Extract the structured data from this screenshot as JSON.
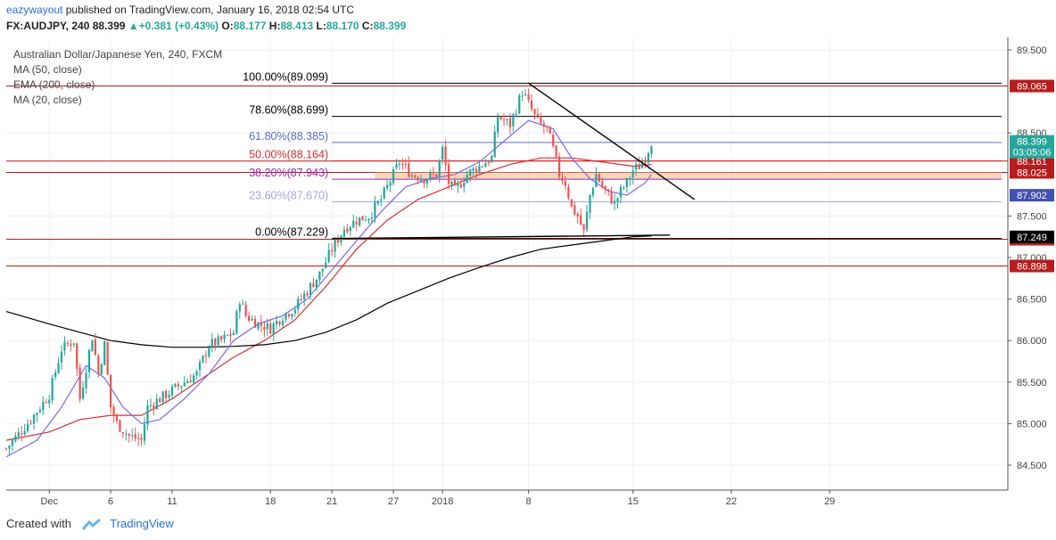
{
  "header": {
    "author": "eazywayout",
    "published_text": "published on TradingView.com, January 16, 2018 02:54 UTC",
    "symbol": "FX:AUDJPY, 240",
    "last": "88.399",
    "change": "+0.381 (+0.43%)",
    "o_label": "O:",
    "o_val": "88.177",
    "h_label": "H:",
    "h_val": "88.413",
    "l_label": "L:",
    "l_val": "88.170",
    "c_label": "C:",
    "c_val": "88.399"
  },
  "legend": {
    "title": "Australian Dollar/Japanese Yen, 240, FXCM",
    "ma50": "MA (50, close)",
    "ema200": "EMA (200, close)",
    "ma20": "MA (20, close)"
  },
  "footer": {
    "created_with": "Created with",
    "brand": "TradingView"
  },
  "colors": {
    "up": "#26a69a",
    "down": "#ef5350",
    "ma50": "#d32f2f",
    "ema200": "#000000",
    "ma20": "#7b68ee",
    "hline_red": "#b71c1c",
    "fib_blue": "#5c6bc0",
    "fib_purple": "#9c27b0",
    "fib_red": "#d32f2f",
    "fib_gray": "#9fa8da",
    "zone": "#f5c9a6"
  },
  "chart_data": {
    "type": "candlestick",
    "instrument": "Australian Dollar/Japanese Yen, 240, FXCM",
    "ylim": [
      84.2,
      89.65
    ],
    "x_range": [
      -7,
      156
    ],
    "y_ticks": [
      "89.500",
      "88.500",
      "87.500",
      "87.000",
      "86.500",
      "86.000",
      "85.500",
      "85.000",
      "84.500"
    ],
    "x_ticks": [
      {
        "label": "Dec",
        "x": 0
      },
      {
        "label": "6",
        "x": 10
      },
      {
        "label": "11",
        "x": 20
      },
      {
        "label": "18",
        "x": 36
      },
      {
        "label": "21",
        "x": 46
      },
      {
        "label": "27",
        "x": 56
      },
      {
        "label": "2018",
        "x": 64
      },
      {
        "label": "8",
        "x": 78
      },
      {
        "label": "15",
        "x": 95
      },
      {
        "label": "22",
        "x": 111
      },
      {
        "label": "29",
        "x": 127
      }
    ],
    "close_path": [
      [
        -7,
        84.7
      ],
      [
        -3,
        85.05
      ],
      [
        0,
        85.35
      ],
      [
        2,
        85.9
      ],
      [
        4,
        86.0
      ],
      [
        5,
        85.3
      ],
      [
        7,
        86.05
      ],
      [
        8,
        85.6
      ],
      [
        9,
        85.95
      ],
      [
        10,
        85.2
      ],
      [
        11,
        85.0
      ],
      [
        13,
        84.85
      ],
      [
        15,
        84.8
      ],
      [
        16,
        85.2
      ],
      [
        18,
        85.3
      ],
      [
        20,
        85.4
      ],
      [
        22,
        85.5
      ],
      [
        24,
        85.6
      ],
      [
        26,
        85.95
      ],
      [
        28,
        86.0
      ],
      [
        30,
        86.1
      ],
      [
        31,
        86.5
      ],
      [
        32,
        86.3
      ],
      [
        34,
        86.2
      ],
      [
        36,
        86.15
      ],
      [
        38,
        86.3
      ],
      [
        40,
        86.4
      ],
      [
        42,
        86.6
      ],
      [
        44,
        86.8
      ],
      [
        46,
        87.1
      ],
      [
        48,
        87.35
      ],
      [
        50,
        87.45
      ],
      [
        52,
        87.5
      ],
      [
        54,
        87.7
      ],
      [
        56,
        88.0
      ],
      [
        57,
        88.15
      ],
      [
        59,
        88.0
      ],
      [
        61,
        87.95
      ],
      [
        63,
        88.0
      ],
      [
        64,
        88.3
      ],
      [
        65,
        87.9
      ],
      [
        66,
        87.8
      ],
      [
        68,
        88.0
      ],
      [
        70,
        88.1
      ],
      [
        72,
        88.2
      ],
      [
        73,
        88.7
      ],
      [
        75,
        88.6
      ],
      [
        76,
        88.8
      ],
      [
        77,
        89.0
      ],
      [
        78,
        88.85
      ],
      [
        79,
        88.7
      ],
      [
        80,
        88.6
      ],
      [
        81,
        88.55
      ],
      [
        82,
        88.3
      ],
      [
        83,
        88.0
      ],
      [
        84,
        87.9
      ],
      [
        85,
        87.6
      ],
      [
        86,
        87.5
      ],
      [
        87,
        87.3
      ],
      [
        88,
        87.75
      ],
      [
        89,
        88.0
      ],
      [
        90,
        87.85
      ],
      [
        91,
        87.75
      ],
      [
        92,
        87.65
      ],
      [
        93,
        87.8
      ],
      [
        94,
        87.9
      ],
      [
        95,
        88.05
      ],
      [
        96,
        88.1
      ],
      [
        97,
        88.2
      ],
      [
        98,
        88.399
      ]
    ],
    "series": [
      {
        "name": "MA (50, close)",
        "color": "#d32f2f",
        "points": [
          [
            -7,
            84.8
          ],
          [
            0,
            84.9
          ],
          [
            5,
            85.05
          ],
          [
            10,
            85.1
          ],
          [
            15,
            85.1
          ],
          [
            20,
            85.3
          ],
          [
            25,
            85.55
          ],
          [
            30,
            85.8
          ],
          [
            35,
            86.0
          ],
          [
            40,
            86.25
          ],
          [
            45,
            86.65
          ],
          [
            50,
            87.1
          ],
          [
            55,
            87.45
          ],
          [
            60,
            87.7
          ],
          [
            65,
            87.85
          ],
          [
            70,
            88.0
          ],
          [
            75,
            88.12
          ],
          [
            80,
            88.2
          ],
          [
            85,
            88.2
          ],
          [
            90,
            88.15
          ],
          [
            95,
            88.1
          ],
          [
            98,
            88.12
          ]
        ]
      },
      {
        "name": "EMA (200, close)",
        "color": "#000000",
        "points": [
          [
            -7,
            86.35
          ],
          [
            0,
            86.2
          ],
          [
            5,
            86.1
          ],
          [
            10,
            86.0
          ],
          [
            15,
            85.95
          ],
          [
            20,
            85.92
          ],
          [
            25,
            85.92
          ],
          [
            30,
            85.93
          ],
          [
            35,
            85.95
          ],
          [
            40,
            86.0
          ],
          [
            45,
            86.1
          ],
          [
            50,
            86.25
          ],
          [
            55,
            86.45
          ],
          [
            60,
            86.6
          ],
          [
            65,
            86.75
          ],
          [
            70,
            86.88
          ],
          [
            75,
            87.0
          ],
          [
            80,
            87.1
          ],
          [
            85,
            87.15
          ],
          [
            90,
            87.2
          ],
          [
            95,
            87.25
          ],
          [
            98,
            87.26
          ]
        ]
      },
      {
        "name": "MA (20, close)",
        "color": "#7b68ee",
        "points": [
          [
            -7,
            84.6
          ],
          [
            -2,
            84.8
          ],
          [
            2,
            85.2
          ],
          [
            6,
            85.7
          ],
          [
            9,
            85.55
          ],
          [
            12,
            85.2
          ],
          [
            15,
            85.0
          ],
          [
            18,
            85.05
          ],
          [
            22,
            85.3
          ],
          [
            26,
            85.6
          ],
          [
            30,
            86.0
          ],
          [
            34,
            86.2
          ],
          [
            38,
            86.3
          ],
          [
            42,
            86.5
          ],
          [
            46,
            86.85
          ],
          [
            50,
            87.2
          ],
          [
            54,
            87.55
          ],
          [
            58,
            87.85
          ],
          [
            62,
            87.95
          ],
          [
            66,
            88.0
          ],
          [
            70,
            88.15
          ],
          [
            74,
            88.4
          ],
          [
            78,
            88.65
          ],
          [
            82,
            88.55
          ],
          [
            85,
            88.2
          ],
          [
            88,
            87.95
          ],
          [
            91,
            87.8
          ],
          [
            94,
            87.75
          ],
          [
            97,
            87.9
          ],
          [
            98,
            88.0
          ]
        ]
      }
    ],
    "horizontal_levels": [
      {
        "value": 89.065,
        "label": "89.065",
        "color": "#b71c1c"
      },
      {
        "value": 88.161,
        "label": "88.161",
        "color": "#b71c1c"
      },
      {
        "value": 88.025,
        "label": "88.025",
        "color": "#b71c1c"
      },
      {
        "value": 87.22,
        "label": "87.220",
        "color": "#b71c1c"
      },
      {
        "value": 86.898,
        "label": "86.898",
        "color": "#b71c1c"
      }
    ],
    "fibonacci": {
      "x_start": 46,
      "x_end": 155,
      "levels": [
        {
          "label": "100.00%(89.099)",
          "value": 89.099,
          "color": "#000000"
        },
        {
          "label": "78.60%(88.699)",
          "value": 88.699,
          "color": "#000000"
        },
        {
          "label": "61.80%(88.385)",
          "value": 88.385,
          "color": "#5c6bc0"
        },
        {
          "label": "50.00%(88.164)",
          "value": 88.164,
          "color": "#d32f2f"
        },
        {
          "label": "38.20%(87.943)",
          "value": 87.943,
          "color": "#9c27b0"
        },
        {
          "label": "23.60%(87.670)",
          "value": 87.67,
          "color": "#9fa8da"
        },
        {
          "label": "0.00%(87.229)",
          "value": 87.229,
          "color": "#000000"
        }
      ]
    },
    "zone": {
      "x_start": 53,
      "x_end": 155,
      "y_low": 87.943,
      "y_high": 88.025
    },
    "trendlines": [
      {
        "from": [
          78,
          89.1
        ],
        "to": [
          105,
          87.7
        ],
        "color": "#000000"
      },
      {
        "from": [
          46,
          87.229
        ],
        "to": [
          101,
          87.27
        ],
        "color": "#000000"
      }
    ],
    "price_tags": [
      {
        "label": "88.399",
        "value": 88.399,
        "bg": "#26a69a"
      },
      {
        "label": "03:05:06",
        "value": 88.27,
        "bg": "#26a69a"
      },
      {
        "label": "87.902",
        "value": 87.75,
        "bg": "#3f51b5"
      },
      {
        "label": "87.249",
        "value": 87.249,
        "bg": "#000000"
      }
    ]
  }
}
